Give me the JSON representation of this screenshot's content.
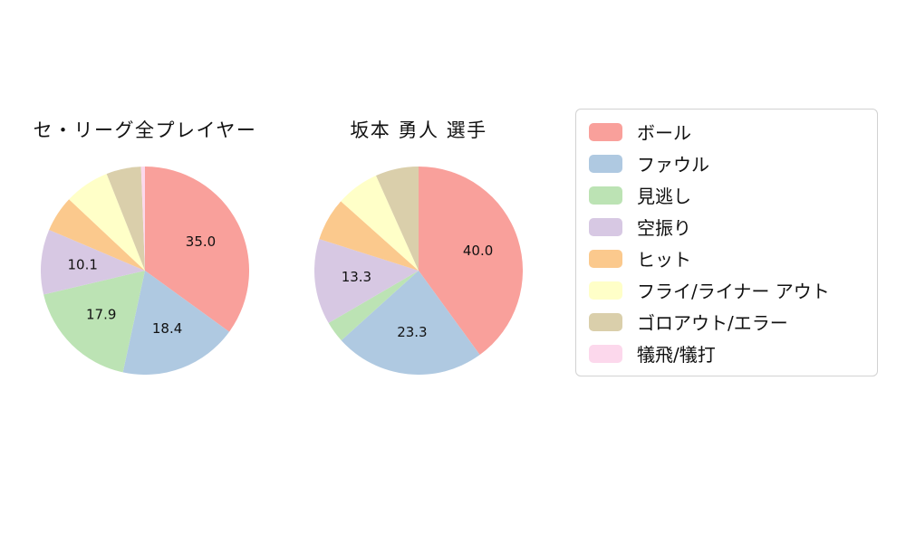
{
  "background": "#ffffff",
  "legend": {
    "items": [
      {
        "label": "ボール",
        "color": "#f9a09b"
      },
      {
        "label": "ファウル",
        "color": "#afc9e1"
      },
      {
        "label": "見逃し",
        "color": "#bce3b4"
      },
      {
        "label": "空振り",
        "color": "#d7c8e3"
      },
      {
        "label": "ヒット",
        "color": "#fbc98d"
      },
      {
        "label": "フライ/ライナー アウト",
        "color": "#ffffc8"
      },
      {
        "label": "ゴロアウト/エラー",
        "color": "#dacfab"
      },
      {
        "label": "犠飛/犠打",
        "color": "#fcd8ec"
      }
    ]
  },
  "chart_data": [
    {
      "type": "pie",
      "title": "セ・リーグ全プレイヤー",
      "categories": [
        "ボール",
        "ファウル",
        "見逃し",
        "空振り",
        "ヒット",
        "フライ/ライナー アウト",
        "ゴロアウト/エラー",
        "犠飛/犠打"
      ],
      "values": [
        35.0,
        18.4,
        17.9,
        10.1,
        5.6,
        7.0,
        5.4,
        0.6
      ],
      "shown_value_labels": [
        "35.0",
        "18.4",
        "17.9",
        "10.1"
      ],
      "label_min_pct": 10,
      "start_angle": "top",
      "direction": "clockwise",
      "legend_position": "right"
    },
    {
      "type": "pie",
      "title": "坂本 勇人  選手",
      "categories": [
        "ボール",
        "ファウル",
        "見逃し",
        "空振り",
        "ヒット",
        "フライ/ライナー アウト",
        "ゴロアウト/エラー",
        "犠飛/犠打"
      ],
      "values": [
        40.0,
        23.3,
        3.3,
        13.3,
        6.7,
        6.7,
        6.7,
        0.0
      ],
      "shown_value_labels": [
        "40.0",
        "23.3",
        "13.3"
      ],
      "label_min_pct": 10,
      "start_angle": "top",
      "direction": "clockwise",
      "legend_position": "right"
    }
  ]
}
